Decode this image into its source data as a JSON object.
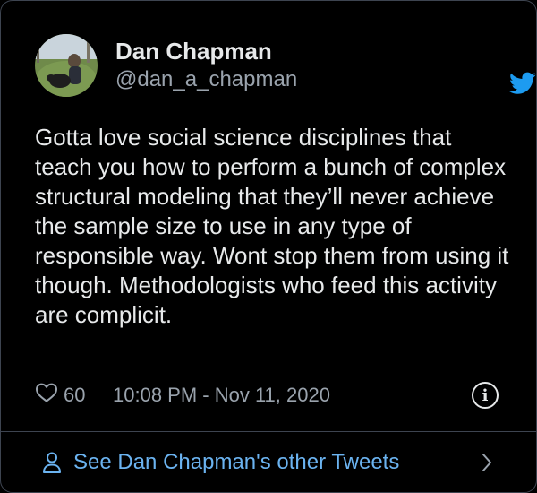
{
  "author": {
    "display_name": "Dan Chapman",
    "handle": "@dan_a_chapman",
    "avatar_icon": "profile-photo"
  },
  "tweet": {
    "text": "Gotta love social science disciplines that teach you how to perform a bunch of complex structural modeling that they’ll never achieve the sample size to use in any type of responsible way. Wont stop them from using it though. Methodologists who feed this activity are complicit.",
    "likes": "60",
    "timestamp": "10:08 PM - Nov 11, 2020"
  },
  "icons": {
    "brand": "twitter-bird-icon",
    "like": "heart-icon",
    "info": "info-icon",
    "footer": "person-icon",
    "footer_arrow": "chevron-right-icon"
  },
  "footer": {
    "label": "See Dan Chapman's other Tweets"
  },
  "colors": {
    "background": "#000000",
    "primary_text": "#e7e9ea",
    "secondary_text": "#9aa3ad",
    "link": "#6bb3f0",
    "twitter_blue": "#1d9bf0",
    "border": "#3d4450"
  }
}
